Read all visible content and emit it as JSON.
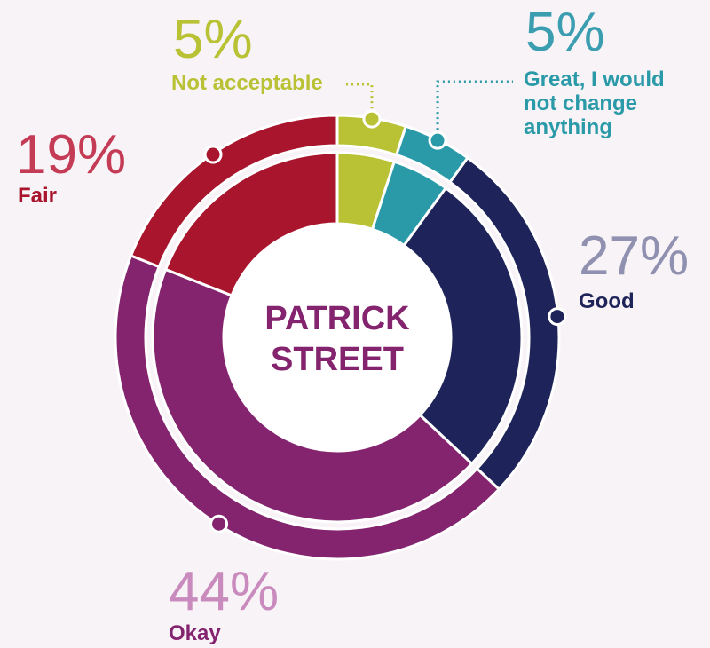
{
  "chart_data": {
    "type": "donut",
    "title": "PATRICK STREET",
    "categories": [
      "Not acceptable",
      "Great, I would not change anything",
      "Good",
      "Okay",
      "Fair"
    ],
    "values": [
      5,
      5,
      27,
      44,
      19
    ],
    "value_labels": [
      "5%",
      "5%",
      "27%",
      "44%",
      "19%"
    ],
    "colors": [
      "#b8c234",
      "#2a9aa8",
      "#1e2459",
      "#84246f",
      "#a8152d"
    ]
  }
}
